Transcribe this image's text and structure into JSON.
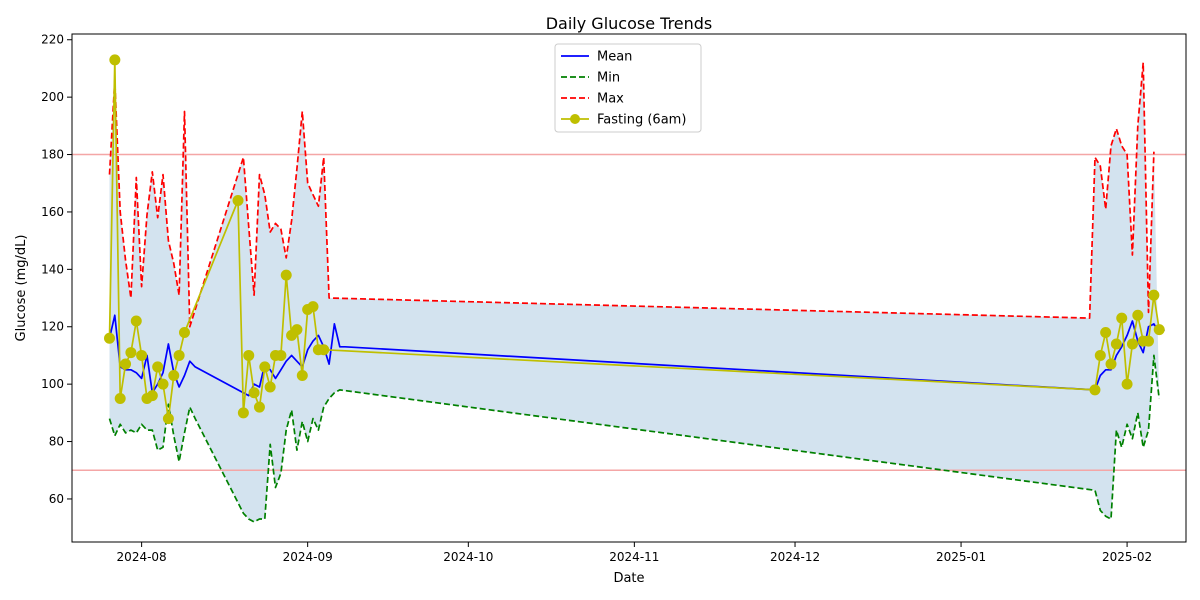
{
  "chart_data": {
    "type": "line",
    "title": "Daily Glucose Trends",
    "xlabel": "Date",
    "ylabel": "Glucose (mg/dL)",
    "x_ticks": [
      "2024-08",
      "2024-09",
      "2024-10",
      "2024-11",
      "2024-12",
      "2025-01",
      "2025-02"
    ],
    "y_ticks": [
      60,
      80,
      100,
      120,
      140,
      160,
      180,
      200,
      220
    ],
    "xlim": [
      "2024-07-19",
      "2025-02-12"
    ],
    "ylim": [
      45,
      222
    ],
    "grid": false,
    "legend_position": "top-center",
    "reference_lines": [
      {
        "y": 180,
        "color": "#f4a6a6"
      },
      {
        "y": 70,
        "color": "#f4a6a6"
      }
    ],
    "series": [
      {
        "name": "Mean",
        "style": "solid",
        "color": "#0000ff",
        "points": [
          [
            "2024-07-26",
            116
          ],
          [
            "2024-07-27",
            124
          ],
          [
            "2024-07-28",
            106
          ],
          [
            "2024-07-29",
            105
          ],
          [
            "2024-07-30",
            105
          ],
          [
            "2024-07-31",
            104
          ],
          [
            "2024-08-01",
            102
          ],
          [
            "2024-08-02",
            110
          ],
          [
            "2024-08-03",
            97
          ],
          [
            "2024-08-04",
            100
          ],
          [
            "2024-08-05",
            104
          ],
          [
            "2024-08-06",
            114
          ],
          [
            "2024-08-07",
            104
          ],
          [
            "2024-08-08",
            99
          ],
          [
            "2024-08-09",
            103
          ],
          [
            "2024-08-10",
            108
          ],
          [
            "2024-08-11",
            106
          ],
          [
            "2024-08-21",
            96
          ],
          [
            "2024-08-22",
            100
          ],
          [
            "2024-08-23",
            99
          ],
          [
            "2024-08-24",
            107
          ],
          [
            "2024-08-25",
            105
          ],
          [
            "2024-08-26",
            102
          ],
          [
            "2024-08-27",
            105
          ],
          [
            "2024-08-28",
            108
          ],
          [
            "2024-08-29",
            110
          ],
          [
            "2024-08-30",
            108
          ],
          [
            "2024-08-31",
            106
          ],
          [
            "2024-09-01",
            112
          ],
          [
            "2024-09-02",
            115
          ],
          [
            "2024-09-03",
            117
          ],
          [
            "2024-09-04",
            113
          ],
          [
            "2024-09-05",
            107
          ],
          [
            "2024-09-06",
            121
          ],
          [
            "2024-09-07",
            113
          ],
          [
            "2024-09-08",
            113
          ],
          [
            "2025-01-26",
            98
          ],
          [
            "2025-01-27",
            103
          ],
          [
            "2025-01-28",
            105
          ],
          [
            "2025-01-29",
            105
          ],
          [
            "2025-01-30",
            110
          ],
          [
            "2025-01-31",
            113
          ],
          [
            "2025-02-01",
            117
          ],
          [
            "2025-02-02",
            122
          ],
          [
            "2025-02-03",
            115
          ],
          [
            "2025-02-04",
            111
          ],
          [
            "2025-02-05",
            120
          ],
          [
            "2025-02-06",
            121
          ],
          [
            "2025-02-07",
            118
          ],
          [
            "2025-02-08",
            119
          ]
        ]
      },
      {
        "name": "Min",
        "style": "dashed",
        "color": "#008000",
        "points": [
          [
            "2024-07-26",
            88
          ],
          [
            "2024-07-27",
            82
          ],
          [
            "2024-07-28",
            86
          ],
          [
            "2024-07-29",
            83
          ],
          [
            "2024-07-30",
            84
          ],
          [
            "2024-07-31",
            83
          ],
          [
            "2024-08-01",
            86
          ],
          [
            "2024-08-02",
            84
          ],
          [
            "2024-08-03",
            84
          ],
          [
            "2024-08-04",
            77
          ],
          [
            "2024-08-05",
            78
          ],
          [
            "2024-08-06",
            93
          ],
          [
            "2024-08-07",
            82
          ],
          [
            "2024-08-08",
            73
          ],
          [
            "2024-08-09",
            83
          ],
          [
            "2024-08-10",
            92
          ],
          [
            "2024-08-11",
            88
          ],
          [
            "2024-08-20",
            55
          ],
          [
            "2024-08-21",
            53
          ],
          [
            "2024-08-22",
            52
          ],
          [
            "2024-08-23",
            53
          ],
          [
            "2024-08-24",
            53
          ],
          [
            "2024-08-25",
            79
          ],
          [
            "2024-08-26",
            64
          ],
          [
            "2024-08-27",
            69
          ],
          [
            "2024-08-28",
            84
          ],
          [
            "2024-08-29",
            91
          ],
          [
            "2024-08-30",
            77
          ],
          [
            "2024-08-31",
            87
          ],
          [
            "2024-09-01",
            80
          ],
          [
            "2024-09-02",
            88
          ],
          [
            "2024-09-03",
            84
          ],
          [
            "2024-09-04",
            92
          ],
          [
            "2024-09-05",
            95
          ],
          [
            "2024-09-06",
            97
          ],
          [
            "2024-09-07",
            98
          ],
          [
            "2025-01-26",
            63
          ],
          [
            "2025-01-27",
            56
          ],
          [
            "2025-01-28",
            54
          ],
          [
            "2025-01-29",
            53
          ],
          [
            "2025-01-30",
            84
          ],
          [
            "2025-01-31",
            78
          ],
          [
            "2025-02-01",
            86
          ],
          [
            "2025-02-02",
            81
          ],
          [
            "2025-02-03",
            90
          ],
          [
            "2025-02-04",
            78
          ],
          [
            "2025-02-05",
            84
          ],
          [
            "2025-02-06",
            110
          ],
          [
            "2025-02-07",
            95
          ]
        ]
      },
      {
        "name": "Max",
        "style": "dashed",
        "color": "#ff0000",
        "points": [
          [
            "2024-07-26",
            173
          ],
          [
            "2024-07-27",
            206
          ],
          [
            "2024-07-28",
            160
          ],
          [
            "2024-07-29",
            143
          ],
          [
            "2024-07-30",
            130
          ],
          [
            "2024-07-31",
            172
          ],
          [
            "2024-08-01",
            134
          ],
          [
            "2024-08-02",
            159
          ],
          [
            "2024-08-03",
            174
          ],
          [
            "2024-08-04",
            158
          ],
          [
            "2024-08-05",
            173
          ],
          [
            "2024-08-06",
            150
          ],
          [
            "2024-08-07",
            142
          ],
          [
            "2024-08-08",
            131
          ],
          [
            "2024-08-09",
            195
          ],
          [
            "2024-08-10",
            120
          ],
          [
            "2024-08-20",
            179
          ],
          [
            "2024-08-21",
            155
          ],
          [
            "2024-08-22",
            131
          ],
          [
            "2024-08-23",
            173
          ],
          [
            "2024-08-24",
            166
          ],
          [
            "2024-08-25",
            153
          ],
          [
            "2024-08-26",
            156
          ],
          [
            "2024-08-27",
            154
          ],
          [
            "2024-08-28",
            144
          ],
          [
            "2024-08-29",
            157
          ],
          [
            "2024-08-30",
            175
          ],
          [
            "2024-08-31",
            195
          ],
          [
            "2024-09-01",
            170
          ],
          [
            "2024-09-02",
            166
          ],
          [
            "2024-09-03",
            162
          ],
          [
            "2024-09-04",
            179
          ],
          [
            "2024-09-05",
            130
          ],
          [
            "2025-01-25",
            123
          ],
          [
            "2025-01-26",
            179
          ],
          [
            "2025-01-27",
            176
          ],
          [
            "2025-01-28",
            161
          ],
          [
            "2025-01-29",
            183
          ],
          [
            "2025-01-30",
            189
          ],
          [
            "2025-01-31",
            183
          ],
          [
            "2025-02-01",
            180
          ],
          [
            "2025-02-02",
            145
          ],
          [
            "2025-02-03",
            190
          ],
          [
            "2025-02-04",
            212
          ],
          [
            "2025-02-05",
            125
          ],
          [
            "2025-02-06",
            181
          ]
        ]
      },
      {
        "name": "Fasting (6am)",
        "style": "solid-marker",
        "color": "#bfbf00",
        "points": [
          [
            "2024-07-26",
            116
          ],
          [
            "2024-07-27",
            213
          ],
          [
            "2024-07-28",
            95
          ],
          [
            "2024-07-29",
            107
          ],
          [
            "2024-07-30",
            111
          ],
          [
            "2024-07-31",
            122
          ],
          [
            "2024-08-01",
            110
          ],
          [
            "2024-08-02",
            95
          ],
          [
            "2024-08-03",
            96
          ],
          [
            "2024-08-04",
            106
          ],
          [
            "2024-08-05",
            100
          ],
          [
            "2024-08-06",
            88
          ],
          [
            "2024-08-07",
            103
          ],
          [
            "2024-08-08",
            110
          ],
          [
            "2024-08-09",
            118
          ],
          [
            "2024-08-19",
            164
          ],
          [
            "2024-08-20",
            90
          ],
          [
            "2024-08-21",
            110
          ],
          [
            "2024-08-22",
            97
          ],
          [
            "2024-08-23",
            92
          ],
          [
            "2024-08-24",
            106
          ],
          [
            "2024-08-25",
            99
          ],
          [
            "2024-08-26",
            110
          ],
          [
            "2024-08-27",
            110
          ],
          [
            "2024-08-28",
            138
          ],
          [
            "2024-08-29",
            117
          ],
          [
            "2024-08-30",
            119
          ],
          [
            "2024-08-31",
            103
          ],
          [
            "2024-09-01",
            126
          ],
          [
            "2024-09-02",
            127
          ],
          [
            "2024-09-03",
            112
          ],
          [
            "2024-09-04",
            112
          ],
          [
            "2025-01-26",
            98
          ],
          [
            "2025-01-27",
            110
          ],
          [
            "2025-01-28",
            118
          ],
          [
            "2025-01-29",
            107
          ],
          [
            "2025-01-30",
            114
          ],
          [
            "2025-01-31",
            123
          ],
          [
            "2025-02-01",
            100
          ],
          [
            "2025-02-02",
            114
          ],
          [
            "2025-02-03",
            124
          ],
          [
            "2025-02-04",
            115
          ],
          [
            "2025-02-05",
            115
          ],
          [
            "2025-02-06",
            131
          ],
          [
            "2025-02-07",
            119
          ]
        ]
      }
    ]
  },
  "colors": {
    "fill_band": "#d3e3ef",
    "reference_line": "#f4a6a6",
    "axis": "#000000"
  }
}
